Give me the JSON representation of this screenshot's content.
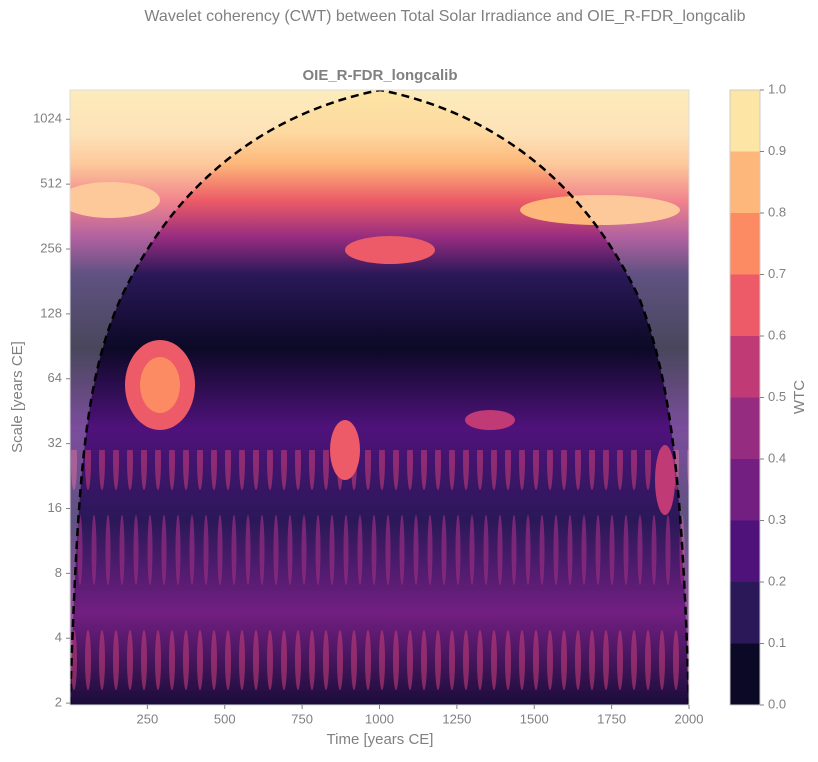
{
  "chart_data": {
    "type": "contour",
    "title": "Wavelet coherency (CWT) between Total Solar Irradiance and OIE_R-FDR_longcalib",
    "subtitle": "OIE_R-FDR_longcalib",
    "x_label": "Time [years CE]",
    "y_label": "Scale [years CE]",
    "xlim": [
      0,
      2000
    ],
    "xticks": [
      250,
      500,
      750,
      1000,
      1250,
      1500,
      1750,
      2000
    ],
    "ylim": [
      1.96,
      1400
    ],
    "y_scale": "log",
    "yticks": [
      2,
      4,
      8,
      16,
      32,
      64,
      128,
      256,
      512,
      1024
    ],
    "colorbar": {
      "label": "WTC",
      "lim": [
        0,
        1
      ],
      "ticks": [
        {
          "value": 0,
          "label": "0.0"
        },
        {
          "value": 0.1,
          "label": "0.1"
        },
        {
          "value": 0.2,
          "label": "0.2"
        },
        {
          "value": 0.3,
          "label": "0.3"
        },
        {
          "value": 0.4,
          "label": "0.4"
        },
        {
          "value": 0.5,
          "label": "0.5"
        },
        {
          "value": 0.6,
          "label": "0.6"
        },
        {
          "value": 0.7,
          "label": "0.7"
        },
        {
          "value": 0.8,
          "label": "0.8"
        },
        {
          "value": 0.9,
          "label": "0.9"
        },
        {
          "value": 1,
          "label": "1.0"
        }
      ],
      "colors": [
        "#0c0926",
        "#2a1858",
        "#4f127b",
        "#721f81",
        "#962c80",
        "#c03a76",
        "#ec5b67",
        "#fc8a62",
        "#fdb77a",
        "#fde5a5"
      ]
    }
  }
}
